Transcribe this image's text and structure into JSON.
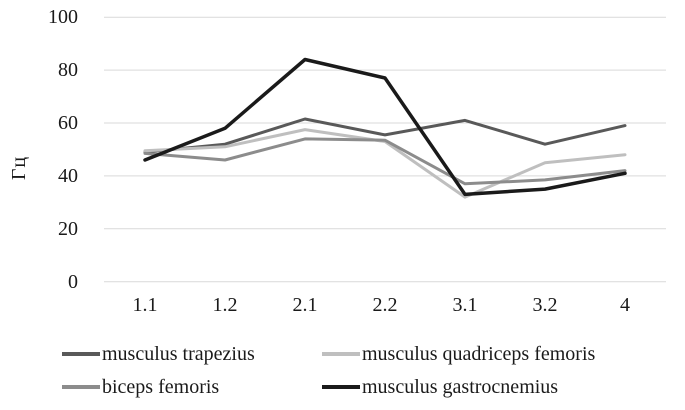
{
  "chart_data": {
    "type": "line",
    "categories": [
      "1.1",
      "1.2",
      "2.1",
      "2.2",
      "3.1",
      "3.2",
      "4"
    ],
    "series": [
      {
        "name": "musculus trapezius",
        "color": "#595959",
        "width": 3,
        "values": [
          49,
          52,
          61.5,
          55.5,
          61,
          52,
          59
        ]
      },
      {
        "name": "musculus quadriceps femoris",
        "color": "#bfbfbf",
        "width": 3,
        "values": [
          49.5,
          51,
          57.5,
          53,
          32,
          45,
          48
        ]
      },
      {
        "name": "biceps femoris",
        "color": "#8c8c8c",
        "width": 3,
        "values": [
          48.5,
          46,
          54,
          53.5,
          37,
          38.5,
          42
        ]
      },
      {
        "name": "musculus gastrocnemius",
        "color": "#1a1a1a",
        "width": 3.5,
        "values": [
          46,
          58,
          84,
          77,
          33,
          35,
          41
        ]
      }
    ],
    "title": "",
    "xlabel": "",
    "ylabel": "Гц",
    "ylim": [
      0,
      100
    ],
    "yticks": [
      0,
      20,
      40,
      60,
      80,
      100
    ],
    "grid": "horizontal",
    "gridline_color": "#d9d9d9",
    "background": "#ffffff",
    "legend_position": "bottom"
  }
}
